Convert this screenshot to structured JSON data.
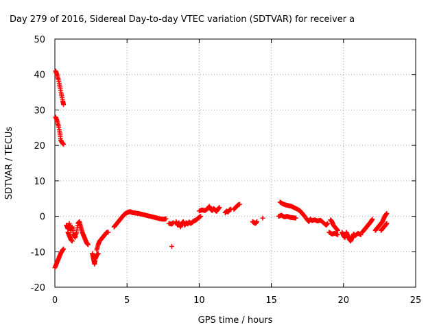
{
  "chart_data": {
    "type": "scatter",
    "title": "Day 279 of 2016, Sidereal Day-to-day VTEC variation (SDTVAR) for receiver a",
    "xlabel": "GPS time / hours",
    "ylabel": "SDTVAR / TECUs",
    "xlim": [
      0,
      25
    ],
    "ylim": [
      -20,
      50
    ],
    "xticks": [
      0,
      5,
      10,
      15,
      20,
      25
    ],
    "yticks": [
      -20,
      -10,
      0,
      10,
      20,
      30,
      40,
      50
    ],
    "grid": true,
    "marker": "+",
    "series": [
      {
        "name": "SDTVAR",
        "color": "#ff0000",
        "segments": [
          [
            [
              0.05,
              41.0
            ],
            [
              0.15,
              40.0
            ],
            [
              0.25,
              38.5
            ],
            [
              0.35,
              36.5
            ],
            [
              0.45,
              34.5
            ],
            [
              0.55,
              32.5
            ],
            [
              0.6,
              31.5
            ]
          ],
          [
            [
              0.05,
              28.0
            ],
            [
              0.15,
              27.0
            ],
            [
              0.25,
              25.5
            ],
            [
              0.35,
              23.5
            ],
            [
              0.4,
              21.5
            ],
            [
              0.5,
              20.8
            ],
            [
              0.6,
              20.3
            ]
          ],
          [
            [
              0.0,
              -14.5
            ],
            [
              0.1,
              -13.5
            ],
            [
              0.2,
              -12.5
            ],
            [
              0.3,
              -11.5
            ],
            [
              0.4,
              -10.5
            ],
            [
              0.5,
              -9.8
            ],
            [
              0.6,
              -9.2
            ]
          ],
          [
            [
              0.8,
              -2.5
            ],
            [
              0.9,
              -3.5
            ],
            [
              1.0,
              -2.0
            ],
            [
              1.1,
              -4.0
            ],
            [
              1.2,
              -3.0
            ],
            [
              1.3,
              -5.0
            ],
            [
              1.4,
              -6.0
            ],
            [
              1.5,
              -4.5
            ],
            [
              1.6,
              -2.0
            ],
            [
              1.7,
              -1.5
            ],
            [
              1.8,
              -3.0
            ],
            [
              1.9,
              -4.5
            ],
            [
              2.0,
              -5.5
            ],
            [
              2.1,
              -6.5
            ],
            [
              2.2,
              -7.5
            ],
            [
              2.3,
              -8.0
            ]
          ],
          [
            [
              0.9,
              -4.5
            ],
            [
              1.0,
              -5.5
            ],
            [
              1.1,
              -6.5
            ],
            [
              1.2,
              -7.0
            ]
          ],
          [
            [
              2.6,
              -10.5
            ],
            [
              2.65,
              -11.5
            ],
            [
              2.7,
              -12.5
            ],
            [
              2.75,
              -13.5
            ],
            [
              2.8,
              -12.0
            ],
            [
              2.9,
              -11.0
            ],
            [
              3.0,
              -10.5
            ]
          ],
          [
            [
              2.9,
              -9.5
            ],
            [
              3.0,
              -8.0
            ],
            [
              3.1,
              -7.0
            ],
            [
              3.2,
              -6.5
            ],
            [
              3.3,
              -6.0
            ],
            [
              3.4,
              -5.5
            ],
            [
              3.5,
              -5.0
            ],
            [
              3.6,
              -4.5
            ],
            [
              3.7,
              -4.5
            ]
          ],
          [
            [
              4.1,
              -3.0
            ],
            [
              4.2,
              -2.5
            ],
            [
              4.3,
              -2.0
            ],
            [
              4.4,
              -1.5
            ],
            [
              4.5,
              -1.0
            ],
            [
              4.6,
              -0.5
            ],
            [
              4.7,
              0.0
            ],
            [
              4.8,
              0.5
            ],
            [
              4.9,
              0.8
            ],
            [
              5.0,
              1.0
            ],
            [
              5.1,
              1.2
            ],
            [
              5.2,
              1.3
            ],
            [
              5.3,
              1.2
            ],
            [
              5.4,
              1.0
            ],
            [
              5.5,
              1.0
            ],
            [
              5.6,
              0.9
            ],
            [
              5.8,
              0.8
            ],
            [
              6.0,
              0.6
            ],
            [
              6.2,
              0.4
            ],
            [
              6.4,
              0.2
            ],
            [
              6.6,
              0.0
            ],
            [
              6.8,
              -0.2
            ],
            [
              7.0,
              -0.4
            ],
            [
              7.2,
              -0.6
            ],
            [
              7.4,
              -0.8
            ],
            [
              7.6,
              -0.8
            ],
            [
              7.7,
              -0.7
            ]
          ],
          [
            [
              7.9,
              -2.0
            ],
            [
              8.1,
              -2.2
            ],
            [
              8.2,
              -1.8
            ]
          ],
          [
            [
              8.1,
              -8.5
            ]
          ],
          [
            [
              8.4,
              -1.5
            ],
            [
              8.5,
              -2.5
            ],
            [
              8.6,
              -1.8
            ],
            [
              8.7,
              -3.0
            ],
            [
              8.8,
              -2.0
            ],
            [
              8.9,
              -1.5
            ],
            [
              9.0,
              -2.5
            ],
            [
              9.1,
              -1.8
            ],
            [
              9.2,
              -2.2
            ],
            [
              9.3,
              -1.6
            ],
            [
              9.4,
              -2.0
            ],
            [
              9.5,
              -1.8
            ],
            [
              9.6,
              -1.4
            ],
            [
              9.7,
              -1.2
            ],
            [
              9.8,
              -1.0
            ],
            [
              9.9,
              -0.6
            ],
            [
              10.0,
              -0.3
            ],
            [
              10.1,
              0.0
            ]
          ],
          [
            [
              10.0,
              1.5
            ],
            [
              10.2,
              1.8
            ],
            [
              10.4,
              1.6
            ],
            [
              10.6,
              2.2
            ],
            [
              10.7,
              2.8
            ],
            [
              10.8,
              2.0
            ],
            [
              10.9,
              1.6
            ],
            [
              11.0,
              2.2
            ],
            [
              11.1,
              1.8
            ],
            [
              11.2,
              1.4
            ],
            [
              11.3,
              2.0
            ],
            [
              11.4,
              2.5
            ]
          ],
          [
            [
              11.8,
              1.0
            ],
            [
              11.9,
              1.5
            ],
            [
              12.0,
              1.2
            ],
            [
              12.1,
              1.8
            ],
            [
              12.2,
              2.0
            ]
          ],
          [
            [
              12.4,
              2.0
            ],
            [
              12.5,
              2.4
            ],
            [
              12.6,
              2.8
            ],
            [
              12.7,
              3.2
            ],
            [
              12.8,
              3.4
            ]
          ],
          [
            [
              13.7,
              -1.5
            ],
            [
              13.8,
              -1.8
            ],
            [
              13.9,
              -2.0
            ],
            [
              14.0,
              -1.5
            ]
          ],
          [
            [
              14.4,
              -0.5
            ]
          ],
          [
            [
              15.5,
              0.0
            ],
            [
              15.7,
              0.3
            ],
            [
              15.9,
              -0.2
            ],
            [
              16.1,
              0.0
            ],
            [
              16.3,
              -0.3
            ],
            [
              16.5,
              -0.4
            ],
            [
              16.7,
              -0.5
            ]
          ],
          [
            [
              15.6,
              4.0
            ],
            [
              15.8,
              3.5
            ],
            [
              16.0,
              3.2
            ],
            [
              16.2,
              3.0
            ],
            [
              16.4,
              2.8
            ],
            [
              16.6,
              2.4
            ],
            [
              16.8,
              2.0
            ],
            [
              17.0,
              1.5
            ],
            [
              17.1,
              1.0
            ],
            [
              17.2,
              0.5
            ],
            [
              17.3,
              0.0
            ]
          ],
          [
            [
              17.4,
              -0.5
            ],
            [
              17.5,
              -1.0
            ],
            [
              17.6,
              -1.5
            ],
            [
              17.7,
              -0.8
            ],
            [
              17.8,
              -1.2
            ],
            [
              18.0,
              -1.0
            ],
            [
              18.2,
              -1.3
            ],
            [
              18.4,
              -1.1
            ],
            [
              18.6,
              -1.8
            ],
            [
              18.8,
              -2.5
            ],
            [
              18.9,
              -2.0
            ]
          ],
          [
            [
              19.1,
              -1.0
            ],
            [
              19.2,
              -1.5
            ],
            [
              19.3,
              -2.5
            ],
            [
              19.4,
              -3.0
            ],
            [
              19.5,
              -3.5
            ],
            [
              19.6,
              -4.0
            ]
          ],
          [
            [
              19.0,
              -4.5
            ],
            [
              19.2,
              -5.0
            ],
            [
              19.4,
              -4.8
            ],
            [
              19.6,
              -5.2
            ]
          ],
          [
            [
              19.9,
              -4.5
            ],
            [
              20.0,
              -5.5
            ],
            [
              20.1,
              -6.0
            ],
            [
              20.2,
              -4.5
            ],
            [
              20.3,
              -5.5
            ],
            [
              20.4,
              -6.5
            ],
            [
              20.5,
              -7.0
            ],
            [
              20.6,
              -6.0
            ],
            [
              20.7,
              -5.0
            ],
            [
              20.8,
              -5.5
            ],
            [
              21.0,
              -4.8
            ],
            [
              21.2,
              -5.2
            ]
          ],
          [
            [
              21.3,
              -4.5
            ],
            [
              21.4,
              -4.0
            ],
            [
              21.5,
              -3.5
            ],
            [
              21.6,
              -3.0
            ],
            [
              21.7,
              -2.5
            ],
            [
              21.8,
              -2.0
            ],
            [
              21.9,
              -1.5
            ],
            [
              22.0,
              -0.8
            ]
          ],
          [
            [
              22.2,
              -4.0
            ],
            [
              22.3,
              -3.5
            ],
            [
              22.4,
              -3.0
            ],
            [
              22.5,
              -2.5
            ],
            [
              22.6,
              -2.0
            ],
            [
              22.7,
              -1.5
            ],
            [
              22.8,
              -0.5
            ],
            [
              22.9,
              0.3
            ],
            [
              23.0,
              0.8
            ]
          ],
          [
            [
              22.6,
              -4.0
            ],
            [
              22.7,
              -3.5
            ],
            [
              22.8,
              -3.0
            ],
            [
              22.9,
              -2.5
            ],
            [
              23.0,
              -2.0
            ]
          ]
        ]
      }
    ]
  }
}
